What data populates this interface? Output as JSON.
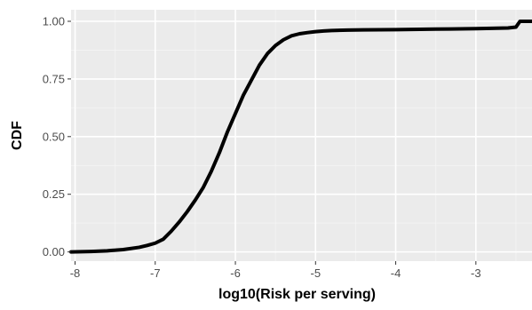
{
  "chart_data": {
    "type": "line",
    "title": "",
    "xlabel": "log10(Risk per serving)",
    "ylabel": "CDF",
    "xlim": [
      -8.05,
      -2.3
    ],
    "ylim": [
      -0.04,
      1.05
    ],
    "x_ticks": [
      -8,
      -7,
      -6,
      -5,
      -4,
      -3
    ],
    "y_ticks": [
      0.0,
      0.25,
      0.5,
      0.75,
      1.0
    ],
    "x_tick_labels": [
      "-8",
      "-7",
      "-6",
      "-5",
      "-4",
      "-3"
    ],
    "y_tick_labels": [
      "0.00",
      "0.25",
      "0.50",
      "0.75",
      "1.00"
    ],
    "grid": true,
    "legend": "none",
    "series": [
      {
        "x": [
          -8.05,
          -7.8,
          -7.6,
          -7.4,
          -7.2,
          -7.1,
          -7.0,
          -6.9,
          -6.8,
          -6.7,
          -6.6,
          -6.5,
          -6.4,
          -6.3,
          -6.2,
          -6.1,
          -6.0,
          -5.9,
          -5.8,
          -5.7,
          -5.6,
          -5.5,
          -5.4,
          -5.3,
          -5.2,
          -5.1,
          -5.0,
          -4.9,
          -4.8,
          -4.6,
          -4.4,
          -4.0,
          -3.5,
          -3.0,
          -2.6,
          -2.5,
          -2.48,
          -2.45,
          -2.3
        ],
        "y": [
          0.0,
          0.002,
          0.005,
          0.01,
          0.02,
          0.028,
          0.038,
          0.055,
          0.09,
          0.13,
          0.175,
          0.225,
          0.28,
          0.35,
          0.43,
          0.52,
          0.6,
          0.68,
          0.745,
          0.81,
          0.86,
          0.895,
          0.92,
          0.937,
          0.946,
          0.951,
          0.955,
          0.958,
          0.96,
          0.962,
          0.963,
          0.964,
          0.966,
          0.968,
          0.971,
          0.975,
          0.985,
          1.0,
          1.0
        ]
      }
    ]
  },
  "colors": {
    "panel": "#ebebeb",
    "grid_major": "#ffffff",
    "grid_minor": "#f5f5f5",
    "line": "#000000",
    "tick_text": "#4d4d4d",
    "title_text": "#000000"
  }
}
